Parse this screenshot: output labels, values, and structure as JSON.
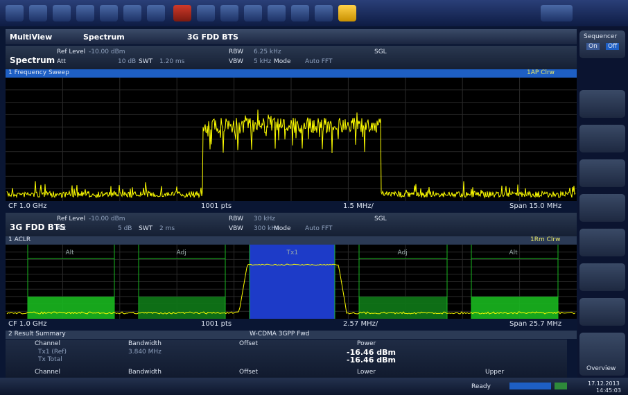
{
  "tabs": [
    "MultiView",
    "Spectrum",
    "3G FDD BTS"
  ],
  "side_panel": {
    "title": "Sequencer",
    "on": "On",
    "off": "Off",
    "overview": "Overview"
  },
  "windows": [
    {
      "name": "Spectrum",
      "header": [
        {
          "label": "Ref Level",
          "value": "-10.00 dBm"
        },
        {
          "label": "Att",
          "value": "10 dB"
        },
        {
          "label": "SWT",
          "value": "1.20 ms"
        },
        {
          "label": "RBW",
          "value": "6.25 kHz"
        },
        {
          "label": "VBW",
          "value": "5 kHz"
        },
        {
          "label": "Mode",
          "value": "Auto FFT"
        },
        {
          "label": "SGL"
        }
      ],
      "trace_title": "1 Frequency Sweep",
      "trace_label": "1AP Clrw",
      "footer": [
        "CF 1.0 GHz",
        "1001 pts",
        "1.5 MHz/",
        "Span 15.0 MHz"
      ]
    },
    {
      "name": "3G FDD BTS",
      "header": [
        {
          "label": "Ref Level",
          "value": "-10.00 dBm"
        },
        {
          "label": "Att",
          "value": "5 dB"
        },
        {
          "label": "SWT",
          "value": "2 ms"
        },
        {
          "label": "RBW",
          "value": "30 kHz"
        },
        {
          "label": "VBW",
          "value": "300 kHz"
        },
        {
          "label": "Mode",
          "value": "Auto FFT"
        },
        {
          "label": "SGL"
        }
      ],
      "trace_title": "1 ACLR",
      "trace_label": "1Rm Clrw",
      "footer": [
        "CF 1.0 GHz",
        "1001 pts",
        "2.57 MHz/",
        "Span 25.7 MHz"
      ]
    }
  ],
  "channels": [
    "Alt",
    "Adj",
    "Tx1",
    "Adj",
    "Alt"
  ],
  "result_summary": {
    "title": "2 Result Summary",
    "standard": "W-CDMA 3GPP Fwd",
    "headers": [
      "Channel",
      "Bandwidth",
      "Offset",
      "Power"
    ],
    "rows": [
      [
        "Tx1 (Ref)",
        "3.840 MHz",
        "-16.46 dBm"
      ],
      [
        "Tx Total",
        "-16.46 dBm"
      ]
    ],
    "headers2": [
      "Channel",
      "Bandwidth",
      "Offset",
      "Lower",
      "Upper"
    ]
  },
  "status": {
    "state": "Ready",
    "date": "17.12.2013",
    "time": "14:45:03"
  }
}
